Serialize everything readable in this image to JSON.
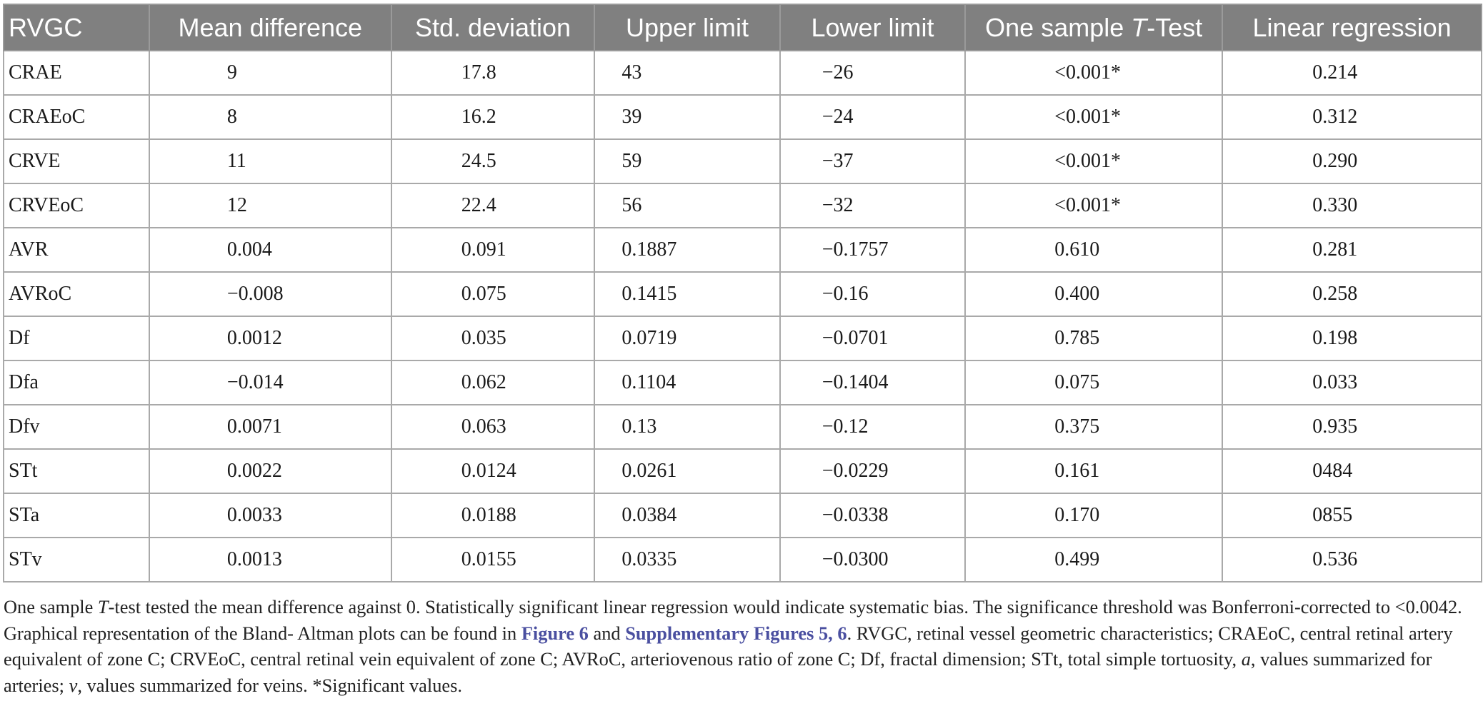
{
  "table": {
    "columns": [
      {
        "pre": "RVGC",
        "em": "",
        "post": ""
      },
      {
        "pre": "Mean difference",
        "em": "",
        "post": ""
      },
      {
        "pre": "Std. deviation",
        "em": "",
        "post": ""
      },
      {
        "pre": "Upper limit",
        "em": "",
        "post": ""
      },
      {
        "pre": "Lower limit",
        "em": "",
        "post": ""
      },
      {
        "pre": "One sample ",
        "em": "T",
        "post": "-Test"
      },
      {
        "pre": "Linear regression",
        "em": "",
        "post": ""
      }
    ],
    "rows": [
      [
        "CRAE",
        "9",
        "17.8",
        "43",
        "−26",
        "<0.001*",
        "0.214"
      ],
      [
        "CRAEoC",
        "8",
        "16.2",
        "39",
        "−24",
        "<0.001*",
        "0.312"
      ],
      [
        "CRVE",
        "11",
        "24.5",
        "59",
        "−37",
        "<0.001*",
        "0.290"
      ],
      [
        "CRVEoC",
        "12",
        "22.4",
        "56",
        "−32",
        "<0.001*",
        "0.330"
      ],
      [
        "AVR",
        "0.004",
        "0.091",
        "0.1887",
        "−0.1757",
        "0.610",
        "0.281"
      ],
      [
        "AVRoC",
        "−0.008",
        "0.075",
        "0.1415",
        "−0.16",
        "0.400",
        "0.258"
      ],
      [
        "Df",
        "0.0012",
        "0.035",
        "0.0719",
        "−0.0701",
        "0.785",
        "0.198"
      ],
      [
        "Dfa",
        "−0.014",
        "0.062",
        "0.1104",
        "−0.1404",
        "0.075",
        "0.033"
      ],
      [
        "Dfv",
        "0.0071",
        "0.063",
        "0.13",
        "−0.12",
        "0.375",
        "0.935"
      ],
      [
        "STt",
        "0.0022",
        "0.0124",
        "0.0261",
        "−0.0229",
        "0.161",
        "0484"
      ],
      [
        "STa",
        "0.0033",
        "0.0188",
        "0.0384",
        "−0.0338",
        "0.170",
        "0855"
      ],
      [
        "STv",
        "0.0013",
        "0.0155",
        "0.0335",
        "−0.0300",
        "0.499",
        "0.536"
      ]
    ]
  },
  "footnote": {
    "line1": {
      "a": "One sample ",
      "b": "T",
      "c": "-test tested the mean difference against 0. Statistically significant linear regression would indicate systematic bias. The significance threshold was Bonferroni-corrected to <0.0042."
    },
    "line2": {
      "a": "Graphical representation of the Bland- Altman plots can be found in ",
      "link1": "Figure 6",
      "b": " and ",
      "link2": "Supplementary Figures 5, 6",
      "c": ". RVGC, retinal vessel geometric characteristics; CRAEoC, central retinal artery"
    },
    "line3": {
      "a": "equivalent of zone C; CRVEoC, central retinal vein equivalent of zone C; AVRoC, arteriovenous ratio of zone C; Df, fractal dimension; STt, total simple tortuosity, ",
      "b": "a",
      "c": ", values summarized for"
    },
    "line4": {
      "a": "arteries; ",
      "b": "v",
      "c": ", values summarized for veins. *Significant values."
    }
  }
}
